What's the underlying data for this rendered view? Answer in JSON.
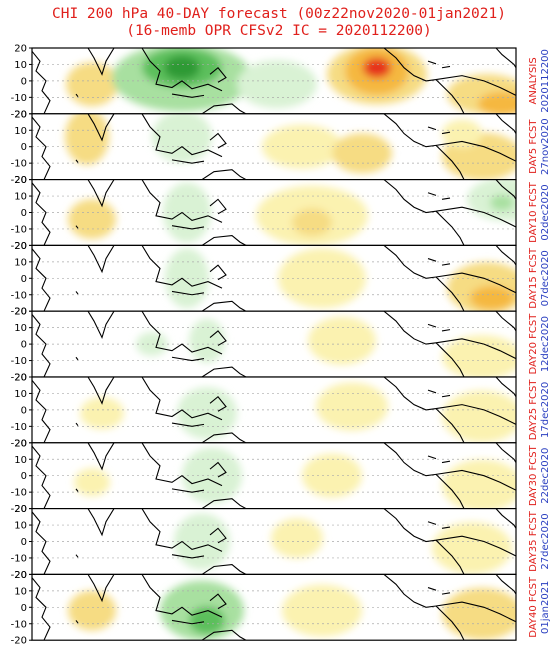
{
  "title_line1": "CHI 200 hPa 40-DAY forecast (00z22nov2020-01jan2021)",
  "title_line2": "(16-memb OPR CFSv2 IC = 2020112200)",
  "y_ticks": [
    "20",
    "10",
    "0",
    "-10",
    "-20"
  ],
  "colors": {
    "title": "#e0201c",
    "label_top": "#e0201c",
    "label_bottom": "#2a3fc0",
    "green_light": "#d9f2d4",
    "green_mid": "#a8e0a0",
    "green_dark": "#5cbf5c",
    "green_darkest": "#2e9a36",
    "yellow_light": "#fbf2b0",
    "yellow_mid": "#f6dc83",
    "orange": "#f5b841",
    "orange_dark": "#ef7d1b",
    "red_core": "#e6331c"
  },
  "panels": [
    {
      "label_top": "ANALYSIS",
      "label_bottom": "2020112200"
    },
    {
      "label_top": "DAY5 FCST",
      "label_bottom": "27nov2020"
    },
    {
      "label_top": "DAY10 FCST",
      "label_bottom": "02dec2020"
    },
    {
      "label_top": "DAY15 FCST",
      "label_bottom": "07dec2020"
    },
    {
      "label_top": "DAY20 FCST",
      "label_bottom": "12dec2020"
    },
    {
      "label_top": "DAY25 FCST",
      "label_bottom": "17dec2020"
    },
    {
      "label_top": "DAY30 FCST",
      "label_bottom": "22dec2020"
    },
    {
      "label_top": "DAY35 FCST",
      "label_bottom": "27dec2020"
    },
    {
      "label_top": "DAY40 FCST",
      "label_bottom": "01jan2021"
    }
  ]
}
